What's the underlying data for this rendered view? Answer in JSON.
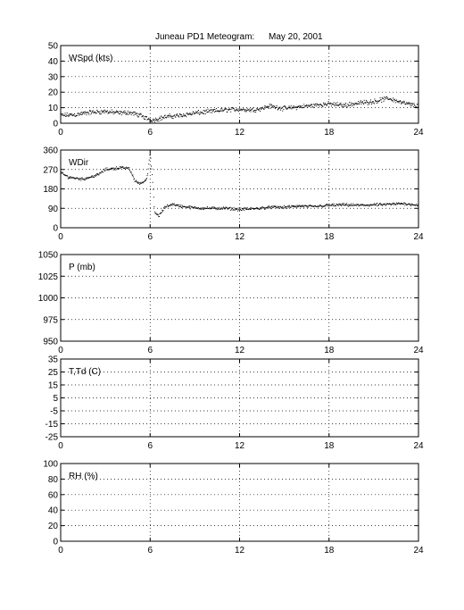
{
  "title": {
    "station": "Juneau PD1 Meteogram:",
    "date": "May 20, 2001"
  },
  "chart_data": [
    {
      "type": "scatter",
      "name": "wind-speed",
      "label": "WSpd (kts)",
      "xlim": [
        0,
        24
      ],
      "ylim": [
        0,
        50
      ],
      "xticks": [
        0,
        6,
        12,
        18,
        24
      ],
      "yticks": [
        0,
        10,
        20,
        30,
        40,
        50
      ],
      "grid": true,
      "knots": [
        [
          0,
          5
        ],
        [
          1,
          5.5
        ],
        [
          2,
          7
        ],
        [
          3,
          7.5
        ],
        [
          4,
          6.5
        ],
        [
          4.5,
          7
        ],
        [
          5.2,
          5.5
        ],
        [
          5.8,
          3
        ],
        [
          6.2,
          2
        ],
        [
          7,
          4
        ],
        [
          8,
          5
        ],
        [
          9,
          6.5
        ],
        [
          10,
          7.5
        ],
        [
          11,
          8.5
        ],
        [
          12,
          9
        ],
        [
          12.8,
          8.5
        ],
        [
          13.5,
          9.5
        ],
        [
          14,
          11
        ],
        [
          15,
          9.5
        ],
        [
          16,
          10.5
        ],
        [
          17,
          11.5
        ],
        [
          18,
          12.5
        ],
        [
          19,
          11.5
        ],
        [
          20,
          13
        ],
        [
          21,
          14
        ],
        [
          22,
          16
        ],
        [
          23,
          13
        ],
        [
          24,
          11
        ]
      ],
      "jitter": 1.8,
      "samples": 720
    },
    {
      "type": "scatter",
      "name": "wind-direction",
      "label": "WDir",
      "xlim": [
        0,
        24
      ],
      "ylim": [
        0,
        360
      ],
      "xticks": [
        0,
        6,
        12,
        18,
        24
      ],
      "yticks": [
        0,
        90,
        180,
        270,
        360
      ],
      "grid": true,
      "knots": [
        [
          0,
          255
        ],
        [
          0.5,
          235
        ],
        [
          1.5,
          225
        ],
        [
          2.5,
          245
        ],
        [
          3,
          270
        ],
        [
          4,
          278
        ],
        [
          4.6,
          275
        ],
        [
          5,
          215
        ],
        [
          5.4,
          205
        ],
        [
          5.8,
          230
        ],
        [
          6.0,
          345
        ],
        [
          6.15,
          240
        ],
        [
          6.3,
          70
        ],
        [
          6.6,
          55
        ],
        [
          7,
          95
        ],
        [
          7.5,
          110
        ],
        [
          8,
          100
        ],
        [
          9,
          92
        ],
        [
          10,
          90
        ],
        [
          11,
          90
        ],
        [
          12,
          85
        ],
        [
          13,
          88
        ],
        [
          14,
          95
        ],
        [
          15,
          95
        ],
        [
          16,
          100
        ],
        [
          17,
          98
        ],
        [
          18,
          104
        ],
        [
          19,
          106
        ],
        [
          20,
          104
        ],
        [
          21,
          106
        ],
        [
          22,
          108
        ],
        [
          23,
          112
        ],
        [
          24,
          105
        ]
      ],
      "jitter": 8,
      "samples": 720
    },
    {
      "type": "scatter",
      "name": "pressure",
      "label": "P (mb)",
      "xlim": [
        0,
        24
      ],
      "ylim": [
        950,
        1050
      ],
      "xticks": [
        0,
        6,
        12,
        18,
        24
      ],
      "yticks": [
        950,
        975,
        1000,
        1025,
        1050
      ],
      "grid": true,
      "knots": []
    },
    {
      "type": "scatter",
      "name": "temperature-dewpoint",
      "label": "T,Td (C)",
      "xlim": [
        0,
        24
      ],
      "ylim": [
        -25,
        35
      ],
      "xticks": [
        0,
        6,
        12,
        18,
        24
      ],
      "yticks": [
        -25,
        -15,
        -5,
        5,
        15,
        25,
        35
      ],
      "grid": true,
      "knots": []
    },
    {
      "type": "scatter",
      "name": "relative-humidity",
      "label": "RH (%)",
      "xlim": [
        0,
        24
      ],
      "ylim": [
        0,
        100
      ],
      "xticks": [
        0,
        6,
        12,
        18,
        24
      ],
      "yticks": [
        0,
        20,
        40,
        60,
        80,
        100
      ],
      "grid": true,
      "knots": []
    }
  ]
}
